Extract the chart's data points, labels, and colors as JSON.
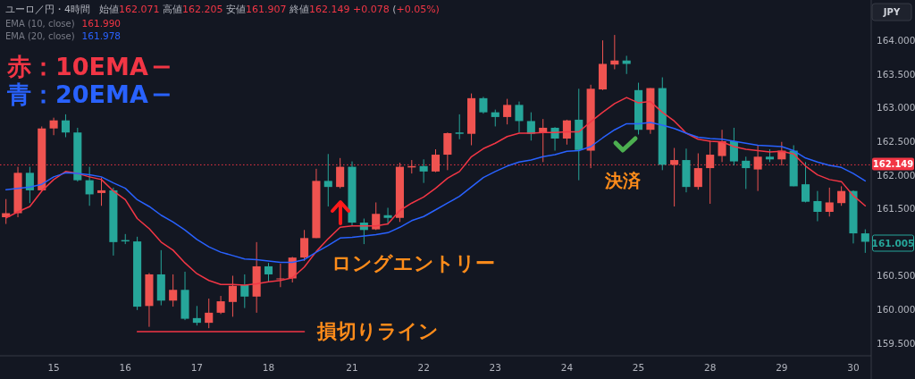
{
  "chart_data": {
    "type": "candlestick",
    "title": "ユーロ／円・4時間",
    "subtitle": "始値162.071 高値162.205 安値161.907 終値162.149 +0.078 (+0.05%)",
    "categories": [
      null,
      null,
      null,
      null,
      "15",
      null,
      null,
      null,
      null,
      null,
      "16",
      null,
      null,
      null,
      null,
      null,
      "17",
      null,
      null,
      null,
      null,
      null,
      "18",
      null,
      null,
      null,
      null,
      null,
      null,
      "21",
      null,
      null,
      null,
      null,
      null,
      "22",
      null,
      null,
      null,
      null,
      null,
      "23",
      null,
      null,
      null,
      null,
      null,
      "24",
      null,
      null,
      null,
      null,
      null,
      "25",
      null,
      null,
      null,
      null,
      null,
      "28",
      null,
      null,
      null,
      null,
      null,
      "29",
      null,
      null,
      null,
      null,
      null,
      "30",
      null
    ],
    "ohlc": [
      [
        161.37,
        161.64,
        161.27,
        161.43
      ],
      [
        161.43,
        162.12,
        161.37,
        162.03
      ],
      [
        162.03,
        162.12,
        161.58,
        161.77
      ],
      [
        161.77,
        162.72,
        161.76,
        162.69
      ],
      [
        162.69,
        162.85,
        162.59,
        162.81
      ],
      [
        162.81,
        162.9,
        162.56,
        162.63
      ],
      [
        162.63,
        162.7,
        161.9,
        161.92
      ],
      [
        161.92,
        162.12,
        161.54,
        161.71
      ],
      [
        161.73,
        161.96,
        161.54,
        161.77
      ],
      [
        161.77,
        161.81,
        160.8,
        161.0
      ],
      [
        161.03,
        161.12,
        160.97,
        161.01
      ],
      [
        161.01,
        161.08,
        159.99,
        160.04
      ],
      [
        160.05,
        160.54,
        159.74,
        160.52
      ],
      [
        160.52,
        160.88,
        160.06,
        160.13
      ],
      [
        160.13,
        160.52,
        160.04,
        160.29
      ],
      [
        160.29,
        160.56,
        159.84,
        159.86
      ],
      [
        159.87,
        160.05,
        159.76,
        159.8
      ],
      [
        159.8,
        160.16,
        159.72,
        159.95
      ],
      [
        159.95,
        160.2,
        159.93,
        160.12
      ],
      [
        160.11,
        160.5,
        159.89,
        160.35
      ],
      [
        160.36,
        160.52,
        160.02,
        160.19
      ],
      [
        160.19,
        161.0,
        159.95,
        160.64
      ],
      [
        160.64,
        160.69,
        160.41,
        160.52
      ],
      [
        160.45,
        160.68,
        160.33,
        160.46
      ],
      [
        160.46,
        160.78,
        160.4,
        160.77
      ],
      [
        160.77,
        161.18,
        160.72,
        161.06
      ],
      [
        161.06,
        162.09,
        161.06,
        161.91
      ],
      [
        161.91,
        162.31,
        161.53,
        161.82
      ],
      [
        161.82,
        162.25,
        161.8,
        162.12
      ],
      [
        162.12,
        162.2,
        161.24,
        161.29
      ],
      [
        161.29,
        161.35,
        160.97,
        161.18
      ],
      [
        161.19,
        161.59,
        161.18,
        161.42
      ],
      [
        161.4,
        161.51,
        161.26,
        161.36
      ],
      [
        161.36,
        162.18,
        161.3,
        162.12
      ],
      [
        162.11,
        162.22,
        162.02,
        162.13
      ],
      [
        162.13,
        162.23,
        161.88,
        162.05
      ],
      [
        162.05,
        162.38,
        162.04,
        162.3
      ],
      [
        162.3,
        162.63,
        162.07,
        162.62
      ],
      [
        162.63,
        162.9,
        162.53,
        162.61
      ],
      [
        162.61,
        163.21,
        162.44,
        163.14
      ],
      [
        163.14,
        163.16,
        162.91,
        162.93
      ],
      [
        162.93,
        162.97,
        162.72,
        162.86
      ],
      [
        162.86,
        163.13,
        162.75,
        163.04
      ],
      [
        163.04,
        163.09,
        162.63,
        162.8
      ],
      [
        162.8,
        162.93,
        162.51,
        162.61
      ],
      [
        162.62,
        162.83,
        162.19,
        162.7
      ],
      [
        162.7,
        162.71,
        162.36,
        162.54
      ],
      [
        162.54,
        162.82,
        162.45,
        162.81
      ],
      [
        162.82,
        163.28,
        161.92,
        162.37
      ],
      [
        162.36,
        163.34,
        162.1,
        163.28
      ],
      [
        163.27,
        164.0,
        163.26,
        163.65
      ],
      [
        163.64,
        164.08,
        163.57,
        163.7
      ],
      [
        163.7,
        163.77,
        163.5,
        163.65
      ],
      [
        163.26,
        163.37,
        162.6,
        162.67
      ],
      [
        162.67,
        163.29,
        162.61,
        163.29
      ],
      [
        163.29,
        163.45,
        162.07,
        162.15
      ],
      [
        162.15,
        162.4,
        161.53,
        162.22
      ],
      [
        162.22,
        162.39,
        161.74,
        161.82
      ],
      [
        161.82,
        162.32,
        161.78,
        162.1
      ],
      [
        162.1,
        162.51,
        161.57,
        162.3
      ],
      [
        162.28,
        162.67,
        162.19,
        162.5
      ],
      [
        162.5,
        162.7,
        162.14,
        162.2
      ],
      [
        162.21,
        162.27,
        161.79,
        162.1
      ],
      [
        162.08,
        162.44,
        161.76,
        162.27
      ],
      [
        162.27,
        162.38,
        162.19,
        162.23
      ],
      [
        162.23,
        162.49,
        162.14,
        162.36
      ],
      [
        162.36,
        162.44,
        161.83,
        161.83
      ],
      [
        161.86,
        162.19,
        161.59,
        161.6
      ],
      [
        161.61,
        161.76,
        161.31,
        161.45
      ],
      [
        161.45,
        161.81,
        161.38,
        161.59
      ],
      [
        161.58,
        161.83,
        161.54,
        161.76
      ],
      [
        161.76,
        161.77,
        160.98,
        161.13
      ],
      [
        161.13,
        161.19,
        160.84,
        161.005
      ]
    ],
    "colors": [
      "#ef5350",
      "#ef5350",
      "#26a69a",
      "#ef5350",
      "#ef5350",
      "#26a69a",
      "#26a69a",
      "#26a69a",
      "#ef5350",
      "#26a69a",
      "#26a69a",
      "#26a69a",
      "#ef5350",
      "#26a69a",
      "#ef5350",
      "#26a69a",
      "#26a69a",
      "#ef5350",
      "#ef5350",
      "#ef5350",
      "#26a69a",
      "#ef5350",
      "#26a69a",
      "#ef5350",
      "#ef5350",
      "#ef5350",
      "#ef5350",
      "#26a69a",
      "#ef5350",
      "#26a69a",
      "#26a69a",
      "#ef5350",
      "#26a69a",
      "#ef5350",
      "#ef5350",
      "#26a69a",
      "#ef5350",
      "#ef5350",
      "#26a69a",
      "#ef5350",
      "#26a69a",
      "#26a69a",
      "#ef5350",
      "#26a69a",
      "#26a69a",
      "#ef5350",
      "#26a69a",
      "#ef5350",
      "#26a69a",
      "#ef5350",
      "#ef5350",
      "#ef5350",
      "#26a69a",
      "#26a69a",
      "#ef5350",
      "#26a69a",
      "#ef5350",
      "#26a69a",
      "#ef5350",
      "#ef5350",
      "#ef5350",
      "#26a69a",
      "#26a69a",
      "#ef5350",
      "#26a69a",
      "#ef5350",
      "#26a69a",
      "#26a69a",
      "#26a69a",
      "#ef5350",
      "#ef5350",
      "#26a69a",
      "#26a69a"
    ],
    "series": [
      {
        "name": "赤：10EMA",
        "type": "line",
        "color": "#f23645",
        "values": [
          161.36,
          161.45,
          161.53,
          161.76,
          161.93,
          162.05,
          162.02,
          161.97,
          161.93,
          161.76,
          161.63,
          161.35,
          161.2,
          161.0,
          160.88,
          160.69,
          160.53,
          160.43,
          160.37,
          160.37,
          160.36,
          160.38,
          160.41,
          160.43,
          160.47,
          160.63,
          160.86,
          161.05,
          161.22,
          161.24,
          161.24,
          161.24,
          161.27,
          161.47,
          161.58,
          161.67,
          161.8,
          161.95,
          162.05,
          162.27,
          162.39,
          162.47,
          162.57,
          162.62,
          162.62,
          162.63,
          162.63,
          162.64,
          162.64,
          162.79,
          162.93,
          163.06,
          163.15,
          163.07,
          163.09,
          162.93,
          162.8,
          162.62,
          162.53,
          162.5,
          162.49,
          162.42,
          162.38,
          162.36,
          162.34,
          162.35,
          162.31,
          162.13,
          162.0,
          161.93,
          161.9,
          161.69,
          161.54
        ]
      },
      {
        "name": "青：20EMA",
        "type": "line",
        "color": "#2962ff",
        "values": [
          161.78,
          161.8,
          161.82,
          161.86,
          161.97,
          162.03,
          162.02,
          162.0,
          161.97,
          161.88,
          161.8,
          161.63,
          161.53,
          161.4,
          161.3,
          161.18,
          161.04,
          160.93,
          160.85,
          160.8,
          160.75,
          160.74,
          160.72,
          160.7,
          160.7,
          160.74,
          160.85,
          160.95,
          161.06,
          161.07,
          161.09,
          161.11,
          161.14,
          161.22,
          161.32,
          161.38,
          161.48,
          161.58,
          161.68,
          161.82,
          161.96,
          162.05,
          162.13,
          162.19,
          162.22,
          162.27,
          162.3,
          162.35,
          162.36,
          162.42,
          162.55,
          162.67,
          162.76,
          162.76,
          162.78,
          162.74,
          162.69,
          162.62,
          162.56,
          162.54,
          162.53,
          162.5,
          162.47,
          162.44,
          162.43,
          162.42,
          162.36,
          162.25,
          162.19,
          162.14,
          162.11,
          162.02,
          161.91
        ]
      },
      {
        "type": "line",
        "color": "#f23645",
        "values": [
          null,
          null,
          null,
          null,
          null,
          null,
          null,
          null,
          null,
          null,
          null,
          159.67,
          159.67,
          159.67,
          159.67,
          159.67,
          159.67,
          159.67,
          159.67,
          159.67,
          159.67,
          159.67,
          159.67,
          159.67,
          159.67,
          159.67,
          null,
          null,
          null,
          null,
          null,
          null,
          null,
          null,
          null,
          null,
          null,
          null,
          null,
          null,
          null,
          null,
          null,
          null,
          null,
          null,
          null,
          null,
          null,
          null,
          null,
          null,
          null,
          null,
          null,
          null,
          null,
          null,
          null,
          null,
          null,
          null,
          null,
          null,
          null,
          null,
          null,
          null,
          null,
          null,
          null,
          null,
          null
        ]
      }
    ],
    "ylim": [
      159.31,
      164.6
    ],
    "yticks": [
      {
        "value": 159.5,
        "label": "159.500"
      },
      {
        "value": 160,
        "label": "160.000"
      },
      {
        "value": 160.5,
        "label": "160.500"
      },
      {
        "value": 161.5,
        "label": "161.500"
      },
      {
        "value": 162,
        "label": "162.000"
      },
      {
        "value": 162.5,
        "label": "162.500"
      },
      {
        "value": 163,
        "label": "163.000"
      },
      {
        "value": 163.5,
        "label": "163.500"
      },
      {
        "value": 164,
        "label": "164.000"
      }
    ],
    "ref_lines": [
      {
        "axis": "y",
        "value": 162.149,
        "label": "162.149",
        "color": "#f23645",
        "line_style": "dotted"
      }
    ],
    "annotations": [
      "EMA (10, close)",
      "161.990",
      "EMA (20, close)",
      "161.978",
      "ロングエントリー",
      "決済",
      "損切りライン",
      "JPY",
      "161.005"
    ],
    "legend": "top left"
  }
}
